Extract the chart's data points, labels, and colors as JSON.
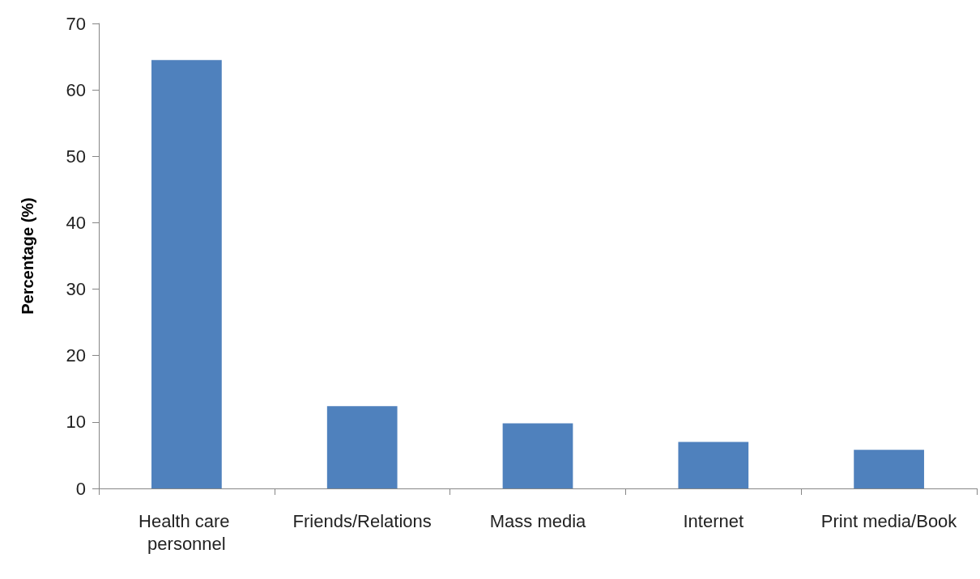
{
  "chart_data": {
    "type": "bar",
    "ylabel": "Percentage (%)",
    "categories": [
      "Health care personnel",
      "Friends/Relations",
      "Mass media",
      "Internet",
      "Print media/Book"
    ],
    "values": [
      64.5,
      12.4,
      9.8,
      7.0,
      5.8
    ],
    "color": "#4f81bd",
    "ylim": [
      0,
      70
    ],
    "yticks": [
      0,
      10,
      20,
      30,
      40,
      50,
      60,
      70
    ],
    "grid": false
  }
}
